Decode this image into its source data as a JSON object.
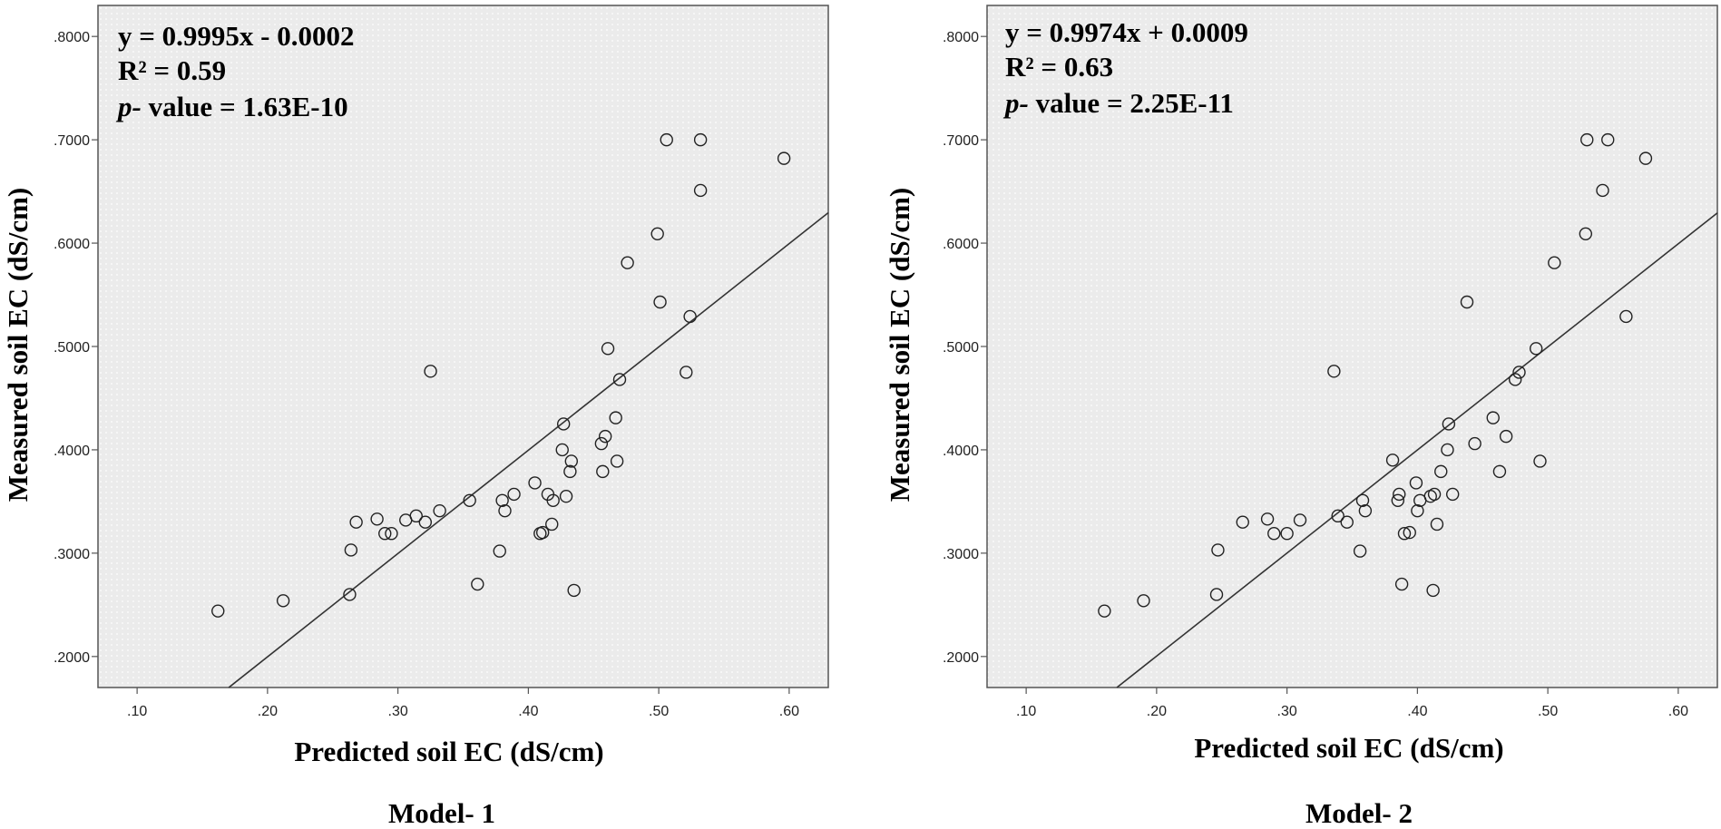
{
  "chart_data": [
    {
      "type": "scatter",
      "title": "Model- 1",
      "xlabel": "Predicted soil EC (dS/cm)",
      "ylabel": "Measured soil EC (dS/cm)",
      "xlim": [
        0.07,
        0.63
      ],
      "ylim": [
        0.17,
        0.83
      ],
      "xticks": [
        0.1,
        0.2,
        0.3,
        0.4,
        0.5,
        0.6
      ],
      "xtick_labels": [
        ".10",
        ".20",
        ".30",
        ".40",
        ".50",
        ".60"
      ],
      "yticks": [
        0.2,
        0.3,
        0.4,
        0.5,
        0.6,
        0.7,
        0.8
      ],
      "ytick_labels": [
        ".2000",
        ".3000",
        ".4000",
        ".5000",
        ".6000",
        ".7000",
        ".8000"
      ],
      "annotations": {
        "equation": "y = 0.9995x - 0.0002",
        "r2": "R² = 0.59",
        "p_prefix": "p-",
        "p_rest": " value = 1.63E-10"
      },
      "fit": {
        "slope": 0.9995,
        "intercept": -0.0002
      },
      "points": [
        [
          0.162,
          0.244
        ],
        [
          0.212,
          0.254
        ],
        [
          0.263,
          0.26
        ],
        [
          0.264,
          0.303
        ],
        [
          0.268,
          0.33
        ],
        [
          0.284,
          0.333
        ],
        [
          0.29,
          0.319
        ],
        [
          0.295,
          0.319
        ],
        [
          0.306,
          0.332
        ],
        [
          0.314,
          0.336
        ],
        [
          0.321,
          0.33
        ],
        [
          0.325,
          0.476
        ],
        [
          0.332,
          0.341
        ],
        [
          0.355,
          0.351
        ],
        [
          0.361,
          0.27
        ],
        [
          0.378,
          0.302
        ],
        [
          0.38,
          0.351
        ],
        [
          0.382,
          0.341
        ],
        [
          0.389,
          0.357
        ],
        [
          0.405,
          0.368
        ],
        [
          0.409,
          0.319
        ],
        [
          0.411,
          0.32
        ],
        [
          0.415,
          0.357
        ],
        [
          0.418,
          0.328
        ],
        [
          0.419,
          0.351
        ],
        [
          0.426,
          0.4
        ],
        [
          0.427,
          0.425
        ],
        [
          0.429,
          0.355
        ],
        [
          0.432,
          0.379
        ],
        [
          0.433,
          0.389
        ],
        [
          0.435,
          0.264
        ],
        [
          0.456,
          0.406
        ],
        [
          0.457,
          0.379
        ],
        [
          0.459,
          0.413
        ],
        [
          0.461,
          0.498
        ],
        [
          0.467,
          0.431
        ],
        [
          0.468,
          0.389
        ],
        [
          0.47,
          0.468
        ],
        [
          0.476,
          0.581
        ],
        [
          0.499,
          0.609
        ],
        [
          0.501,
          0.543
        ],
        [
          0.506,
          0.7
        ],
        [
          0.521,
          0.475
        ],
        [
          0.524,
          0.529
        ],
        [
          0.532,
          0.651
        ],
        [
          0.532,
          0.7
        ],
        [
          0.596,
          0.682
        ]
      ]
    },
    {
      "type": "scatter",
      "title": "Model- 2",
      "xlabel": "Predicted soil EC (dS/cm)",
      "ylabel": "Measured soil EC (dS/cm)",
      "xlim": [
        0.07,
        0.63
      ],
      "ylim": [
        0.17,
        0.83
      ],
      "xticks": [
        0.1,
        0.2,
        0.3,
        0.4,
        0.5,
        0.6
      ],
      "xtick_labels": [
        ".10",
        ".20",
        ".30",
        ".40",
        ".50",
        ".60"
      ],
      "yticks": [
        0.2,
        0.3,
        0.4,
        0.5,
        0.6,
        0.7,
        0.8
      ],
      "ytick_labels": [
        ".2000",
        ".3000",
        ".4000",
        ".5000",
        ".6000",
        ".7000",
        ".8000"
      ],
      "annotations": {
        "equation": "y = 0.9974x + 0.0009",
        "r2": "R² = 0.63",
        "p_prefix": "p-",
        "p_rest": " value = 2.25E-11"
      },
      "fit": {
        "slope": 0.9974,
        "intercept": 0.0009
      },
      "points": [
        [
          0.16,
          0.244
        ],
        [
          0.19,
          0.254
        ],
        [
          0.246,
          0.26
        ],
        [
          0.247,
          0.303
        ],
        [
          0.266,
          0.33
        ],
        [
          0.285,
          0.333
        ],
        [
          0.29,
          0.319
        ],
        [
          0.3,
          0.319
        ],
        [
          0.31,
          0.332
        ],
        [
          0.336,
          0.476
        ],
        [
          0.339,
          0.336
        ],
        [
          0.346,
          0.33
        ],
        [
          0.356,
          0.302
        ],
        [
          0.358,
          0.351
        ],
        [
          0.36,
          0.341
        ],
        [
          0.381,
          0.39
        ],
        [
          0.385,
          0.351
        ],
        [
          0.386,
          0.357
        ],
        [
          0.388,
          0.27
        ],
        [
          0.39,
          0.319
        ],
        [
          0.394,
          0.32
        ],
        [
          0.399,
          0.368
        ],
        [
          0.4,
          0.341
        ],
        [
          0.402,
          0.351
        ],
        [
          0.41,
          0.355
        ],
        [
          0.412,
          0.264
        ],
        [
          0.413,
          0.357
        ],
        [
          0.415,
          0.328
        ],
        [
          0.418,
          0.379
        ],
        [
          0.423,
          0.4
        ],
        [
          0.424,
          0.425
        ],
        [
          0.427,
          0.357
        ],
        [
          0.438,
          0.543
        ],
        [
          0.444,
          0.406
        ],
        [
          0.458,
          0.431
        ],
        [
          0.463,
          0.379
        ],
        [
          0.468,
          0.413
        ],
        [
          0.475,
          0.468
        ],
        [
          0.478,
          0.475
        ],
        [
          0.491,
          0.498
        ],
        [
          0.494,
          0.389
        ],
        [
          0.505,
          0.581
        ],
        [
          0.529,
          0.609
        ],
        [
          0.53,
          0.7
        ],
        [
          0.542,
          0.651
        ],
        [
          0.546,
          0.7
        ],
        [
          0.56,
          0.529
        ],
        [
          0.575,
          0.682
        ]
      ]
    }
  ]
}
